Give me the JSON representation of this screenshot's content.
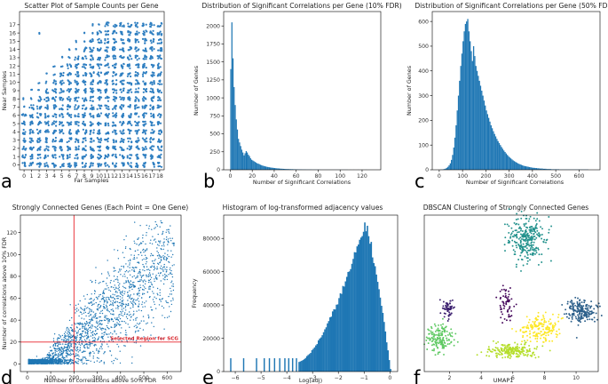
{
  "chart_data": [
    {
      "id": "a",
      "type": "scatter",
      "title": "Scatter Plot of Sample Counts per Gene",
      "xlabel": "Far Samples",
      "ylabel": "Near Samples",
      "xlim": [
        -0.6,
        18.6
      ],
      "ylim": [
        -0.6,
        18.6
      ],
      "xticks": [
        0,
        1,
        2,
        3,
        4,
        5,
        6,
        7,
        8,
        9,
        10,
        11,
        12,
        13,
        14,
        15,
        16,
        17,
        18
      ],
      "yticks": [
        0,
        1,
        2,
        3,
        4,
        5,
        6,
        7,
        8,
        9,
        10,
        11,
        12,
        13,
        14,
        15,
        16,
        17
      ],
      "color": "#2f7fc1",
      "description_rule": "integer grid points; dense where near <= far + 8"
    },
    {
      "id": "b",
      "type": "bar",
      "title": "Distribution of Significant Correlations per Gene (10% FDR)",
      "xlabel": "Number of Significant Correlations",
      "ylabel": "Number of Genes",
      "xlim": [
        -6,
        137
      ],
      "ylim": [
        0,
        2200
      ],
      "xticks": [
        0,
        20,
        40,
        60,
        80,
        100,
        120
      ],
      "yticks": [
        0,
        250,
        500,
        750,
        1000,
        1250,
        1500,
        1750,
        2000
      ],
      "bin_start": 0,
      "bin_width": 1,
      "values": [
        1400,
        2050,
        1550,
        1150,
        900,
        700,
        560,
        430,
        380,
        330,
        280,
        240,
        200,
        230,
        260,
        240,
        210,
        190,
        160,
        140,
        130,
        120,
        110,
        100,
        90,
        85,
        78,
        70,
        64,
        58,
        53,
        49,
        45,
        41,
        38,
        35,
        32,
        30,
        28,
        26,
        24,
        22,
        20,
        19,
        18,
        16,
        15,
        14,
        13,
        12,
        11,
        10,
        10,
        9,
        9,
        8,
        8,
        7,
        7,
        6,
        6,
        6,
        5,
        5,
        5,
        4,
        4,
        4,
        4,
        3,
        3,
        3,
        3,
        3,
        2,
        2,
        2,
        2,
        2,
        2,
        2,
        2,
        1,
        1,
        1,
        1,
        1,
        1,
        1,
        1,
        1,
        1,
        1,
        1,
        1,
        1,
        1,
        1,
        1,
        1,
        1,
        1,
        1,
        1,
        1,
        1,
        1,
        0,
        0,
        1,
        0,
        0,
        1,
        0,
        0,
        0,
        1,
        0,
        0,
        0,
        0,
        0,
        0,
        1,
        0,
        0,
        0,
        0,
        0,
        0,
        0
      ],
      "color": "#1f77b4"
    },
    {
      "id": "c",
      "type": "bar",
      "title": "Distribution of Significant Correlations per Gene (50% FDR)",
      "xlabel": "Number of Significant Correlations",
      "ylabel": "Number of Genes",
      "xlim": [
        -30,
        690
      ],
      "ylim": [
        0,
        640
      ],
      "xticks": [
        0,
        100,
        200,
        300,
        400,
        500,
        600
      ],
      "yticks": [
        0,
        100,
        200,
        300,
        400,
        500,
        600
      ],
      "bin_start": 0,
      "bin_width": 5,
      "values": [
        0,
        1,
        1,
        2,
        3,
        5,
        8,
        12,
        18,
        26,
        40,
        60,
        90,
        130,
        180,
        240,
        300,
        360,
        420,
        470,
        520,
        560,
        590,
        600,
        610,
        560,
        520,
        480,
        440,
        500,
        460,
        420,
        400,
        380,
        360,
        340,
        320,
        300,
        280,
        260,
        240,
        225,
        210,
        195,
        180,
        168,
        156,
        145,
        135,
        125,
        116,
        108,
        100,
        92,
        85,
        78,
        72,
        66,
        60,
        55,
        50,
        46,
        42,
        38,
        35,
        32,
        29,
        26,
        24,
        22,
        20,
        18,
        16,
        15,
        14,
        13,
        12,
        11,
        10,
        9,
        8,
        8,
        7,
        7,
        6,
        6,
        5,
        5,
        5,
        4,
        4,
        4,
        3,
        3,
        3,
        3,
        2,
        2,
        2,
        2,
        2,
        2,
        2,
        1,
        1,
        1,
        1,
        1,
        1,
        1,
        1,
        1,
        1,
        1,
        1,
        1,
        1,
        1,
        1,
        1,
        1,
        1,
        1,
        1,
        1,
        1,
        1,
        1,
        0,
        0
      ],
      "color": "#1f77b4"
    },
    {
      "id": "d",
      "type": "scatter",
      "title": "Strongly Connected Genes (Each Point = One Gene)",
      "xlabel": "Number of correlations above 50% FDR",
      "ylabel": "Number of correlations above 10% FDR",
      "xlim": [
        -30,
        660
      ],
      "ylim": [
        -7,
        136
      ],
      "xticks": [
        0,
        100,
        200,
        300,
        400,
        500,
        600
      ],
      "yticks": [
        0,
        20,
        40,
        60,
        80,
        100,
        120
      ],
      "threshold_x": 200,
      "threshold_y": 20,
      "annotation": "Selected Region for SCG",
      "color": "#1f77b4",
      "line_color": "#e8232a"
    },
    {
      "id": "e",
      "type": "bar",
      "title": "Histogram of log-transformed adjacency values",
      "xlabel": "Log(adj)",
      "ylabel": "Frequency",
      "xlim": [
        -6.45,
        0.3
      ],
      "ylim": [
        0,
        94000
      ],
      "xticks": [
        -6,
        -5,
        -4,
        -3,
        -2,
        -1,
        0
      ],
      "yticks": [
        0,
        20000,
        40000,
        60000,
        80000
      ],
      "bin_width": 0.05,
      "bars": [
        {
          "x": -6.2,
          "v": 8000
        },
        {
          "x": -5.7,
          "v": 8000
        },
        {
          "x": -5.2,
          "v": 8000
        },
        {
          "x": -4.9,
          "v": 8000
        },
        {
          "x": -4.7,
          "v": 8000
        },
        {
          "x": -4.5,
          "v": 8000
        },
        {
          "x": -4.3,
          "v": 8000
        },
        {
          "x": -4.1,
          "v": 8000
        },
        {
          "x": -3.95,
          "v": 8000
        },
        {
          "x": -3.8,
          "v": 8000
        },
        {
          "x": -3.65,
          "v": 8000
        }
      ],
      "dense_start": -3.55,
      "peak_at": -1.0,
      "peak_value": 89000,
      "color": "#1f77b4"
    },
    {
      "id": "f",
      "type": "scatter",
      "title": "DBSCAN Clustering of Strongly Connected Genes",
      "xlabel": "UMAP1",
      "ylabel": "",
      "xlim": [
        0.4,
        11.4
      ],
      "ylim": [
        2.1,
        11.9
      ],
      "xticks": [
        2,
        4,
        6,
        8,
        10
      ],
      "clusters": [
        {
          "cx": 6.9,
          "cy": 10.3,
          "sx": 0.55,
          "sy": 0.7,
          "n": 280,
          "color": "#21918c"
        },
        {
          "cx": 1.9,
          "cy": 6.0,
          "sx": 0.22,
          "sy": 0.3,
          "n": 60,
          "color": "#3b1f6e"
        },
        {
          "cx": 5.6,
          "cy": 6.3,
          "sx": 0.25,
          "sy": 0.55,
          "n": 60,
          "color": "#46085c"
        },
        {
          "cx": 1.4,
          "cy": 4.2,
          "sx": 0.4,
          "sy": 0.45,
          "n": 160,
          "color": "#5ec962"
        },
        {
          "cx": 10.3,
          "cy": 5.9,
          "sx": 0.45,
          "sy": 0.35,
          "n": 200,
          "color": "#2c5f8a"
        },
        {
          "cx": 7.7,
          "cy": 4.8,
          "sx": 0.6,
          "sy": 0.4,
          "n": 170,
          "color": "#fde725"
        },
        {
          "cx": 6.0,
          "cy": 3.4,
          "sx": 0.75,
          "sy": 0.22,
          "n": 210,
          "color": "#b5de2b"
        }
      ]
    }
  ],
  "panel_letters": [
    "a",
    "b",
    "c",
    "d",
    "e",
    "f"
  ]
}
